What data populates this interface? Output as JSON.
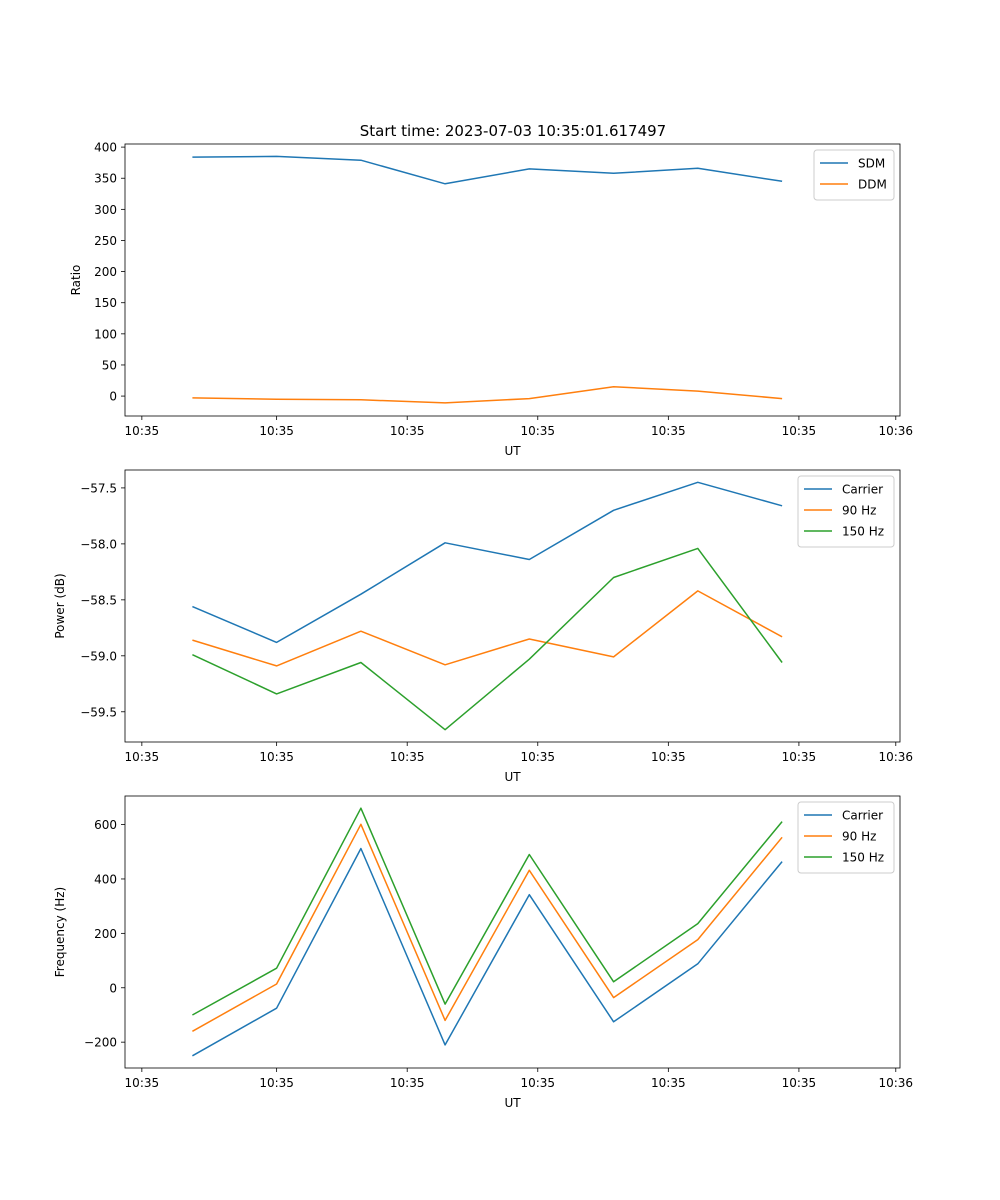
{
  "figure": {
    "title": "Start time: 2023-07-03 10:35:01.617497"
  },
  "colors": {
    "blue": "#1f77b4",
    "orange": "#ff7f0e",
    "green": "#2ca02c"
  },
  "chart_data": [
    {
      "type": "line",
      "title": "Start time: 2023-07-03 10:35:01.617497",
      "xlabel": "UT",
      "ylabel": "Ratio",
      "x": [
        1,
        2,
        3,
        4,
        5,
        6,
        7,
        8
      ],
      "xlim": [
        0.2,
        9.4
      ],
      "x_ticks": [
        0.4,
        2,
        3.55,
        5.1,
        6.65,
        8.2,
        9.35
      ],
      "x_tick_labels": [
        "10:35",
        "10:35",
        "10:35",
        "10:35",
        "10:35",
        "10:35",
        "10:36"
      ],
      "ylim": [
        -32,
        405
      ],
      "y_ticks": [
        0,
        50,
        100,
        150,
        200,
        250,
        300,
        350,
        400
      ],
      "y_tick_labels": [
        "0",
        "50",
        "100",
        "150",
        "200",
        "250",
        "300",
        "350",
        "400"
      ],
      "legend": "top-right",
      "series": [
        {
          "name": "SDM",
          "color": "#1f77b4",
          "values": [
            384,
            385,
            379,
            341,
            365,
            358,
            366,
            345
          ]
        },
        {
          "name": "DDM",
          "color": "#ff7f0e",
          "values": [
            -3,
            -5,
            -6,
            -11,
            -4,
            15,
            8,
            -4
          ]
        }
      ]
    },
    {
      "type": "line",
      "title": "",
      "xlabel": "UT",
      "ylabel": "Power (dB)",
      "x": [
        1,
        2,
        3,
        4,
        5,
        6,
        7,
        8
      ],
      "xlim": [
        0.2,
        9.4
      ],
      "x_ticks": [
        0.4,
        2,
        3.55,
        5.1,
        6.65,
        8.2,
        9.35
      ],
      "x_tick_labels": [
        "10:35",
        "10:35",
        "10:35",
        "10:35",
        "10:35",
        "10:35",
        "10:36"
      ],
      "ylim": [
        -59.77,
        -57.34
      ],
      "y_ticks": [
        -59.5,
        -59.0,
        -58.5,
        -58.0,
        -57.5
      ],
      "y_tick_labels": [
        "−59.5",
        "−59.0",
        "−58.5",
        "−58.0",
        "−57.5"
      ],
      "legend": "top-right",
      "series": [
        {
          "name": "Carrier",
          "color": "#1f77b4",
          "values": [
            -58.56,
            -58.88,
            -58.45,
            -57.99,
            -58.14,
            -57.7,
            -57.45,
            -57.66
          ]
        },
        {
          "name": "90 Hz",
          "color": "#ff7f0e",
          "values": [
            -58.86,
            -59.09,
            -58.78,
            -59.08,
            -58.85,
            -59.01,
            -58.42,
            -58.83
          ]
        },
        {
          "name": "150 Hz",
          "color": "#2ca02c",
          "values": [
            -58.99,
            -59.34,
            -59.06,
            -59.66,
            -59.03,
            -58.3,
            -58.04,
            -59.06
          ]
        }
      ]
    },
    {
      "type": "line",
      "title": "",
      "xlabel": "UT",
      "ylabel": "Frequency (Hz)",
      "x": [
        1,
        2,
        3,
        4,
        5,
        6,
        7,
        8
      ],
      "xlim": [
        0.2,
        9.4
      ],
      "x_ticks": [
        0.4,
        2,
        3.55,
        5.1,
        6.65,
        8.2,
        9.35
      ],
      "x_tick_labels": [
        "10:35",
        "10:35",
        "10:35",
        "10:35",
        "10:35",
        "10:35",
        "10:36"
      ],
      "ylim": [
        -295,
        705
      ],
      "y_ticks": [
        -200,
        0,
        200,
        400,
        600
      ],
      "y_tick_labels": [
        "−200",
        "0",
        "200",
        "400",
        "600"
      ],
      "legend": "top-right",
      "series": [
        {
          "name": "Carrier",
          "color": "#1f77b4",
          "values": [
            -250,
            -75,
            512,
            -210,
            342,
            -125,
            88,
            464
          ]
        },
        {
          "name": "90 Hz",
          "color": "#ff7f0e",
          "values": [
            -160,
            14,
            601,
            -120,
            432,
            -36,
            177,
            553
          ]
        },
        {
          "name": "150 Hz",
          "color": "#2ca02c",
          "values": [
            -100,
            72,
            660,
            -60,
            490,
            22,
            236,
            611
          ]
        }
      ]
    }
  ]
}
